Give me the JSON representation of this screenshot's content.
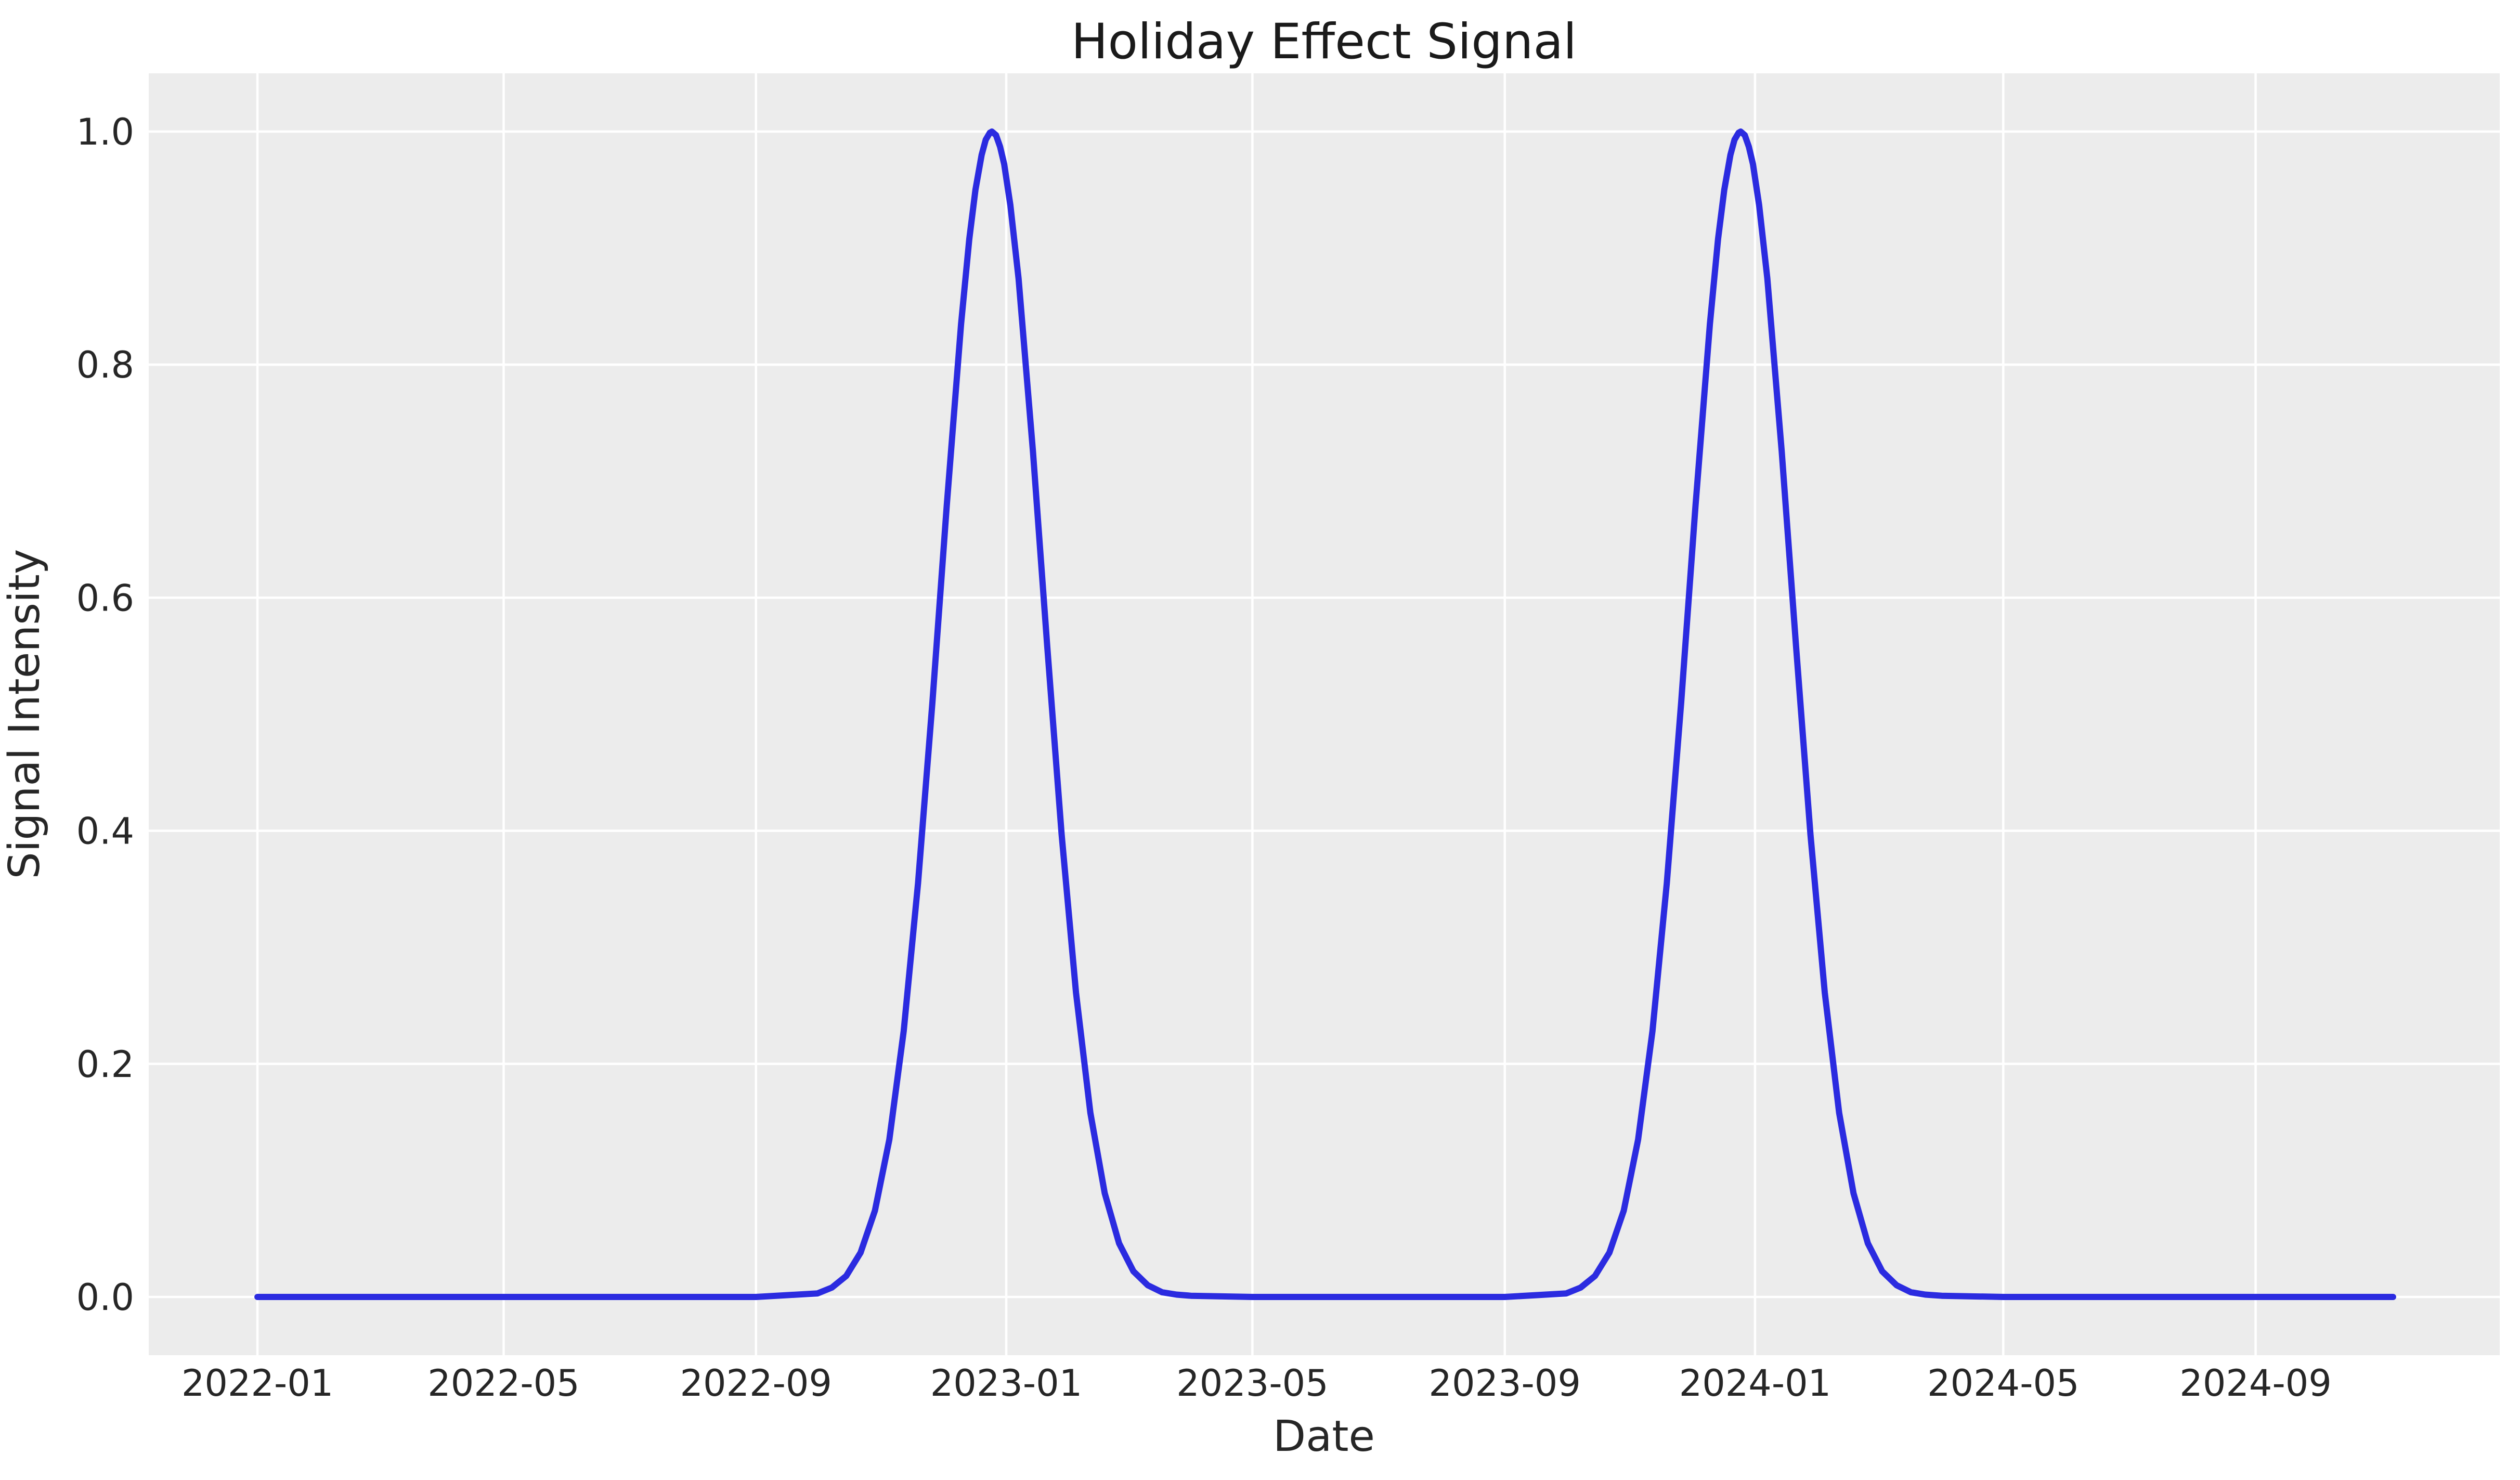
{
  "chart_data": {
    "type": "line",
    "title": "Holiday Effect Signal",
    "xlabel": "Date",
    "ylabel": "Signal Intensity",
    "grid": true,
    "legend": "none",
    "plot_bg_color": "#ECECEC",
    "grid_color": "#FFFFFF",
    "line_color": "#2B2BE0",
    "text_color": "#262626",
    "xlim": [
      "2021-11-09",
      "2024-12-29"
    ],
    "ylim": [
      -0.05,
      1.05
    ],
    "x_ticks": [
      {
        "label": "2022-01",
        "date": "2022-01-01"
      },
      {
        "label": "2022-05",
        "date": "2022-05-01"
      },
      {
        "label": "2022-09",
        "date": "2022-09-01"
      },
      {
        "label": "2023-01",
        "date": "2023-01-01"
      },
      {
        "label": "2023-05",
        "date": "2023-05-01"
      },
      {
        "label": "2023-09",
        "date": "2023-09-01"
      },
      {
        "label": "2024-01",
        "date": "2024-01-01"
      },
      {
        "label": "2024-05",
        "date": "2024-05-01"
      },
      {
        "label": "2024-09",
        "date": "2024-09-01"
      }
    ],
    "y_ticks": [
      {
        "label": "0.0",
        "value": 0.0
      },
      {
        "label": "0.2",
        "value": 0.2
      },
      {
        "label": "0.4",
        "value": 0.4
      },
      {
        "label": "0.6",
        "value": 0.6
      },
      {
        "label": "0.8",
        "value": 0.8
      },
      {
        "label": "1.0",
        "value": 1.0
      }
    ],
    "series": [
      {
        "name": "holiday-effect-signal",
        "peak_description": "Gaussian holiday bumps peaking 1.0 near Dec 25 of 2022 and 2023, sigma ~25 days, 0 elsewhere",
        "points": [
          {
            "x": "2022-01-01",
            "y": 0.0
          },
          {
            "x": "2022-02-01",
            "y": 0.0
          },
          {
            "x": "2022-03-01",
            "y": 0.0
          },
          {
            "x": "2022-04-01",
            "y": 0.0
          },
          {
            "x": "2022-05-01",
            "y": 0.0
          },
          {
            "x": "2022-06-01",
            "y": 0.0
          },
          {
            "x": "2022-07-01",
            "y": 0.0
          },
          {
            "x": "2022-08-01",
            "y": 0.0
          },
          {
            "x": "2022-09-01",
            "y": 0.0
          },
          {
            "x": "2022-10-01",
            "y": 0.003
          },
          {
            "x": "2022-10-08",
            "y": 0.008
          },
          {
            "x": "2022-10-15",
            "y": 0.018
          },
          {
            "x": "2022-10-22",
            "y": 0.038
          },
          {
            "x": "2022-10-29",
            "y": 0.074
          },
          {
            "x": "2022-11-05",
            "y": 0.135
          },
          {
            "x": "2022-11-12",
            "y": 0.228
          },
          {
            "x": "2022-11-19",
            "y": 0.355
          },
          {
            "x": "2022-11-26",
            "y": 0.51
          },
          {
            "x": "2022-12-03",
            "y": 0.679
          },
          {
            "x": "2022-12-10",
            "y": 0.835
          },
          {
            "x": "2022-12-14",
            "y": 0.908
          },
          {
            "x": "2022-12-17",
            "y": 0.95
          },
          {
            "x": "2022-12-20",
            "y": 0.98
          },
          {
            "x": "2022-12-22",
            "y": 0.993
          },
          {
            "x": "2022-12-24",
            "y": 0.999
          },
          {
            "x": "2022-12-25",
            "y": 1.0
          },
          {
            "x": "2022-12-27",
            "y": 0.997
          },
          {
            "x": "2022-12-29",
            "y": 0.987
          },
          {
            "x": "2022-12-31",
            "y": 0.972
          },
          {
            "x": "2023-01-03",
            "y": 0.937
          },
          {
            "x": "2023-01-07",
            "y": 0.874
          },
          {
            "x": "2023-01-14",
            "y": 0.726
          },
          {
            "x": "2023-01-21",
            "y": 0.558
          },
          {
            "x": "2023-01-28",
            "y": 0.397
          },
          {
            "x": "2023-02-04",
            "y": 0.261
          },
          {
            "x": "2023-02-11",
            "y": 0.158
          },
          {
            "x": "2023-02-18",
            "y": 0.089
          },
          {
            "x": "2023-02-25",
            "y": 0.046
          },
          {
            "x": "2023-03-04",
            "y": 0.022
          },
          {
            "x": "2023-03-11",
            "y": 0.01
          },
          {
            "x": "2023-03-18",
            "y": 0.004
          },
          {
            "x": "2023-03-25",
            "y": 0.002
          },
          {
            "x": "2023-04-01",
            "y": 0.001
          },
          {
            "x": "2023-05-01",
            "y": 0.0
          },
          {
            "x": "2023-06-01",
            "y": 0.0
          },
          {
            "x": "2023-07-01",
            "y": 0.0
          },
          {
            "x": "2023-08-01",
            "y": 0.0
          },
          {
            "x": "2023-09-01",
            "y": 0.0
          },
          {
            "x": "2023-10-01",
            "y": 0.003
          },
          {
            "x": "2023-10-08",
            "y": 0.008
          },
          {
            "x": "2023-10-15",
            "y": 0.018
          },
          {
            "x": "2023-10-22",
            "y": 0.038
          },
          {
            "x": "2023-10-29",
            "y": 0.074
          },
          {
            "x": "2023-11-05",
            "y": 0.135
          },
          {
            "x": "2023-11-12",
            "y": 0.228
          },
          {
            "x": "2023-11-19",
            "y": 0.355
          },
          {
            "x": "2023-11-26",
            "y": 0.51
          },
          {
            "x": "2023-12-03",
            "y": 0.679
          },
          {
            "x": "2023-12-10",
            "y": 0.835
          },
          {
            "x": "2023-12-14",
            "y": 0.908
          },
          {
            "x": "2023-12-17",
            "y": 0.95
          },
          {
            "x": "2023-12-20",
            "y": 0.98
          },
          {
            "x": "2023-12-22",
            "y": 0.993
          },
          {
            "x": "2023-12-24",
            "y": 0.999
          },
          {
            "x": "2023-12-25",
            "y": 1.0
          },
          {
            "x": "2023-12-27",
            "y": 0.997
          },
          {
            "x": "2023-12-29",
            "y": 0.987
          },
          {
            "x": "2023-12-31",
            "y": 0.972
          },
          {
            "x": "2024-01-03",
            "y": 0.937
          },
          {
            "x": "2024-01-07",
            "y": 0.874
          },
          {
            "x": "2024-01-14",
            "y": 0.726
          },
          {
            "x": "2024-01-21",
            "y": 0.558
          },
          {
            "x": "2024-01-28",
            "y": 0.397
          },
          {
            "x": "2024-02-04",
            "y": 0.261
          },
          {
            "x": "2024-02-11",
            "y": 0.158
          },
          {
            "x": "2024-02-18",
            "y": 0.089
          },
          {
            "x": "2024-02-25",
            "y": 0.046
          },
          {
            "x": "2024-03-03",
            "y": 0.022
          },
          {
            "x": "2024-03-10",
            "y": 0.01
          },
          {
            "x": "2024-03-17",
            "y": 0.004
          },
          {
            "x": "2024-03-24",
            "y": 0.002
          },
          {
            "x": "2024-04-01",
            "y": 0.001
          },
          {
            "x": "2024-05-01",
            "y": 0.0
          },
          {
            "x": "2024-06-01",
            "y": 0.0
          },
          {
            "x": "2024-07-01",
            "y": 0.0
          },
          {
            "x": "2024-08-01",
            "y": 0.0
          },
          {
            "x": "2024-09-01",
            "y": 0.0
          },
          {
            "x": "2024-10-01",
            "y": 0.0
          },
          {
            "x": "2024-11-07",
            "y": 0.0
          }
        ]
      }
    ]
  }
}
